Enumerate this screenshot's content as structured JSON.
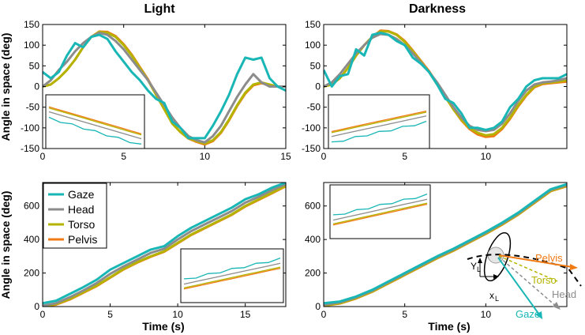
{
  "colors": {
    "Gaze": "#19b6b6",
    "Head": "#8c8c8c",
    "Torso": "#b4b400",
    "Pelvis": "#f07a14"
  },
  "chart_data": [
    {
      "id": "light-top",
      "type": "line",
      "title": "Light",
      "xlabel": "",
      "ylabel": "Angle in space (deg)",
      "xlim": [
        0,
        15
      ],
      "ylim": [
        -150,
        150
      ],
      "xticks": [
        0,
        5,
        10,
        15
      ],
      "yticks": [
        -150,
        -100,
        -50,
        0,
        50,
        100,
        150
      ],
      "series": [
        {
          "name": "Gaze",
          "x": [
            0,
            0.5,
            1,
            1.5,
            2,
            2.5,
            3,
            3.5,
            4,
            4.5,
            5,
            5.5,
            6,
            6.5,
            7,
            7.5,
            8,
            8.5,
            9,
            9.5,
            10,
            10.5,
            11,
            11.5,
            12,
            12.5,
            13,
            13.5,
            14,
            14.5,
            15
          ],
          "values": [
            35,
            20,
            35,
            75,
            105,
            95,
            120,
            125,
            115,
            85,
            60,
            35,
            15,
            -10,
            -30,
            -40,
            -85,
            -100,
            -125,
            -125,
            -125,
            -95,
            -60,
            -20,
            30,
            70,
            65,
            70,
            20,
            0,
            -10
          ]
        },
        {
          "name": "Head",
          "x": [
            0,
            0.5,
            1,
            1.5,
            2,
            2.5,
            3,
            3.5,
            4,
            4.5,
            5,
            5.5,
            6,
            6.5,
            7,
            7.5,
            8,
            8.5,
            9,
            9.5,
            10,
            10.5,
            11,
            11.5,
            12,
            12.5,
            13,
            13.5,
            14,
            14.5,
            15
          ],
          "values": [
            0,
            15,
            40,
            60,
            85,
            105,
            120,
            130,
            125,
            110,
            90,
            65,
            40,
            15,
            -15,
            -45,
            -75,
            -100,
            -120,
            -130,
            -135,
            -120,
            -95,
            -60,
            -25,
            5,
            30,
            10,
            0,
            0,
            0
          ]
        },
        {
          "name": "Torso",
          "x": [
            0,
            0.5,
            1,
            1.5,
            2,
            2.5,
            3,
            3.5,
            4,
            4.5,
            5,
            5.5,
            6,
            6.5,
            7,
            7.5,
            8,
            8.5,
            9,
            9.5,
            10,
            10.5,
            11,
            11.5,
            12,
            12.5,
            13,
            13.5,
            14,
            14.5,
            15
          ],
          "values": [
            0,
            5,
            20,
            40,
            65,
            95,
            120,
            132,
            130,
            120,
            100,
            75,
            45,
            15,
            -20,
            -55,
            -90,
            -110,
            -125,
            -132,
            -138,
            -130,
            -110,
            -80,
            -45,
            -15,
            5,
            10,
            5,
            0,
            0
          ]
        },
        {
          "name": "Pelvis",
          "x": [
            0,
            0.5,
            1,
            1.5,
            2,
            2.5,
            3,
            3.5,
            4,
            4.5,
            5,
            5.5,
            6,
            6.5,
            7,
            7.5,
            8,
            8.5,
            9,
            9.5,
            10,
            10.5,
            11,
            11.5,
            12,
            12.5,
            13,
            13.5,
            14,
            14.5,
            15
          ],
          "values": [
            0,
            5,
            20,
            40,
            65,
            95,
            120,
            133,
            132,
            122,
            102,
            77,
            47,
            17,
            -18,
            -53,
            -88,
            -110,
            -126,
            -134,
            -140,
            -132,
            -112,
            -82,
            -47,
            -17,
            3,
            8,
            3,
            0,
            0
          ]
        }
      ]
    },
    {
      "id": "dark-top",
      "type": "line",
      "title": "Darkness",
      "xlabel": "",
      "ylabel": "",
      "xlim": [
        0,
        15
      ],
      "ylim": [
        -150,
        150
      ],
      "xticks": [
        0,
        5,
        10
      ],
      "yticks": [
        -150,
        -100,
        -50,
        0,
        50,
        100,
        150
      ],
      "series": [
        {
          "name": "Gaze",
          "x": [
            0,
            0.5,
            1,
            1.5,
            2,
            2.5,
            3,
            3.5,
            4,
            4.5,
            5,
            5.5,
            6,
            6.5,
            7,
            7.5,
            8,
            8.5,
            9,
            9.5,
            10,
            10.5,
            11,
            11.5,
            12,
            12.5,
            13,
            13.5,
            14,
            14.5,
            15
          ],
          "values": [
            40,
            0,
            25,
            30,
            90,
            75,
            125,
            130,
            125,
            110,
            100,
            70,
            55,
            35,
            5,
            -30,
            -40,
            -65,
            -100,
            -100,
            -105,
            -100,
            -85,
            -50,
            -30,
            0,
            15,
            20,
            20,
            20,
            30
          ]
        },
        {
          "name": "Head",
          "x": [
            0,
            0.5,
            1,
            1.5,
            2,
            2.5,
            3,
            3.5,
            4,
            4.5,
            5,
            5.5,
            6,
            6.5,
            7,
            7.5,
            8,
            8.5,
            9,
            9.5,
            10,
            10.5,
            11,
            11.5,
            12,
            12.5,
            13,
            13.5,
            14,
            14.5,
            15
          ],
          "values": [
            0,
            10,
            30,
            55,
            80,
            100,
            118,
            127,
            125,
            115,
            100,
            80,
            58,
            35,
            10,
            -20,
            -50,
            -75,
            -95,
            -105,
            -108,
            -105,
            -90,
            -65,
            -35,
            -10,
            5,
            10,
            12,
            15,
            20
          ]
        },
        {
          "name": "Torso",
          "x": [
            0,
            0.5,
            1,
            1.5,
            2,
            2.5,
            3,
            3.5,
            4,
            4.5,
            5,
            5.5,
            6,
            6.5,
            7,
            7.5,
            8,
            8.5,
            9,
            9.5,
            10,
            10.5,
            11,
            11.5,
            12,
            12.5,
            13,
            13.5,
            14,
            14.5,
            15
          ],
          "values": [
            0,
            5,
            20,
            45,
            75,
            100,
            120,
            133,
            133,
            125,
            108,
            85,
            60,
            35,
            5,
            -25,
            -55,
            -80,
            -100,
            -112,
            -118,
            -115,
            -100,
            -75,
            -45,
            -20,
            0,
            8,
            10,
            12,
            15
          ]
        },
        {
          "name": "Pelvis",
          "x": [
            0,
            0.5,
            1,
            1.5,
            2,
            2.5,
            3,
            3.5,
            4,
            4.5,
            5,
            5.5,
            6,
            6.5,
            7,
            7.5,
            8,
            8.5,
            9,
            9.5,
            10,
            10.5,
            11,
            11.5,
            12,
            12.5,
            13,
            13.5,
            14,
            14.5,
            15
          ],
          "values": [
            0,
            5,
            20,
            45,
            75,
            100,
            120,
            135,
            134,
            126,
            110,
            87,
            62,
            37,
            7,
            -23,
            -55,
            -82,
            -103,
            -116,
            -122,
            -120,
            -103,
            -78,
            -48,
            -22,
            -2,
            6,
            8,
            10,
            12
          ]
        }
      ]
    },
    {
      "id": "light-bottom",
      "type": "line",
      "title": "",
      "xlabel": "Time (s)",
      "ylabel": "Angle in space (deg)",
      "xlim": [
        0,
        18
      ],
      "ylim": [
        0,
        740
      ],
      "xticks": [
        0,
        5,
        10,
        15
      ],
      "yticks": [
        0,
        200,
        400,
        600
      ],
      "series": [
        {
          "name": "Gaze",
          "x": [
            0,
            1,
            2,
            3,
            4,
            5,
            6,
            7,
            8,
            9,
            10,
            11,
            12,
            13,
            14,
            15,
            16,
            17,
            18
          ],
          "values": [
            20,
            35,
            75,
            115,
            160,
            220,
            260,
            300,
            340,
            360,
            420,
            470,
            510,
            550,
            590,
            640,
            670,
            710,
            740
          ]
        },
        {
          "name": "Head",
          "x": [
            0,
            1,
            2,
            3,
            4,
            5,
            6,
            7,
            8,
            9,
            10,
            11,
            12,
            13,
            14,
            15,
            16,
            17,
            18
          ],
          "values": [
            5,
            20,
            55,
            95,
            140,
            195,
            240,
            280,
            320,
            345,
            400,
            450,
            490,
            530,
            570,
            620,
            655,
            695,
            730
          ]
        },
        {
          "name": "Torso",
          "x": [
            0,
            1,
            2,
            3,
            4,
            5,
            6,
            7,
            8,
            9,
            10,
            11,
            12,
            13,
            14,
            15,
            16,
            17,
            18
          ],
          "values": [
            0,
            15,
            45,
            85,
            125,
            175,
            225,
            265,
            300,
            330,
            380,
            430,
            470,
            510,
            550,
            600,
            640,
            680,
            720
          ]
        },
        {
          "name": "Pelvis",
          "x": [
            0,
            1,
            2,
            3,
            4,
            5,
            6,
            7,
            8,
            9,
            10,
            11,
            12,
            13,
            14,
            15,
            16,
            17,
            18
          ],
          "values": [
            0,
            12,
            42,
            82,
            122,
            172,
            222,
            262,
            297,
            327,
            377,
            427,
            467,
            507,
            547,
            597,
            637,
            677,
            718
          ]
        }
      ]
    },
    {
      "id": "dark-bottom",
      "type": "line",
      "title": "",
      "xlabel": "Time (s)",
      "ylabel": "",
      "xlim": [
        0,
        15
      ],
      "ylim": [
        0,
        740
      ],
      "xticks": [
        0,
        5,
        10
      ],
      "yticks": [
        0,
        200,
        400,
        600
      ],
      "series": [
        {
          "name": "Gaze",
          "x": [
            0,
            1,
            2,
            3,
            4,
            5,
            6,
            7,
            8,
            9,
            10,
            11,
            12,
            13,
            14,
            15
          ],
          "values": [
            20,
            30,
            60,
            100,
            150,
            200,
            250,
            300,
            345,
            395,
            445,
            500,
            560,
            630,
            700,
            730
          ]
        },
        {
          "name": "Head",
          "x": [
            0,
            1,
            2,
            3,
            4,
            5,
            6,
            7,
            8,
            9,
            10,
            11,
            12,
            13,
            14,
            15
          ],
          "values": [
            10,
            25,
            55,
            95,
            145,
            195,
            245,
            295,
            340,
            390,
            440,
            495,
            555,
            625,
            695,
            725
          ]
        },
        {
          "name": "Torso",
          "x": [
            0,
            1,
            2,
            3,
            4,
            5,
            6,
            7,
            8,
            9,
            10,
            11,
            12,
            13,
            14,
            15
          ],
          "values": [
            5,
            20,
            50,
            90,
            140,
            190,
            240,
            290,
            335,
            385,
            435,
            490,
            550,
            620,
            690,
            720
          ]
        },
        {
          "name": "Pelvis",
          "x": [
            0,
            1,
            2,
            3,
            4,
            5,
            6,
            7,
            8,
            9,
            10,
            11,
            12,
            13,
            14,
            15
          ],
          "values": [
            5,
            18,
            48,
            88,
            138,
            188,
            238,
            288,
            333,
            383,
            433,
            488,
            548,
            618,
            688,
            718
          ]
        }
      ]
    }
  ],
  "legend": {
    "entries": [
      "Gaze",
      "Head",
      "Torso",
      "Pelvis"
    ],
    "placement": "top-left of bottom-left panel"
  },
  "inset_annotations": {
    "axis_x": "x",
    "axis_y": "Y",
    "axis_subscript": "L",
    "labels": [
      "Pelvis",
      "Torso",
      "Head",
      "Gaze"
    ]
  }
}
